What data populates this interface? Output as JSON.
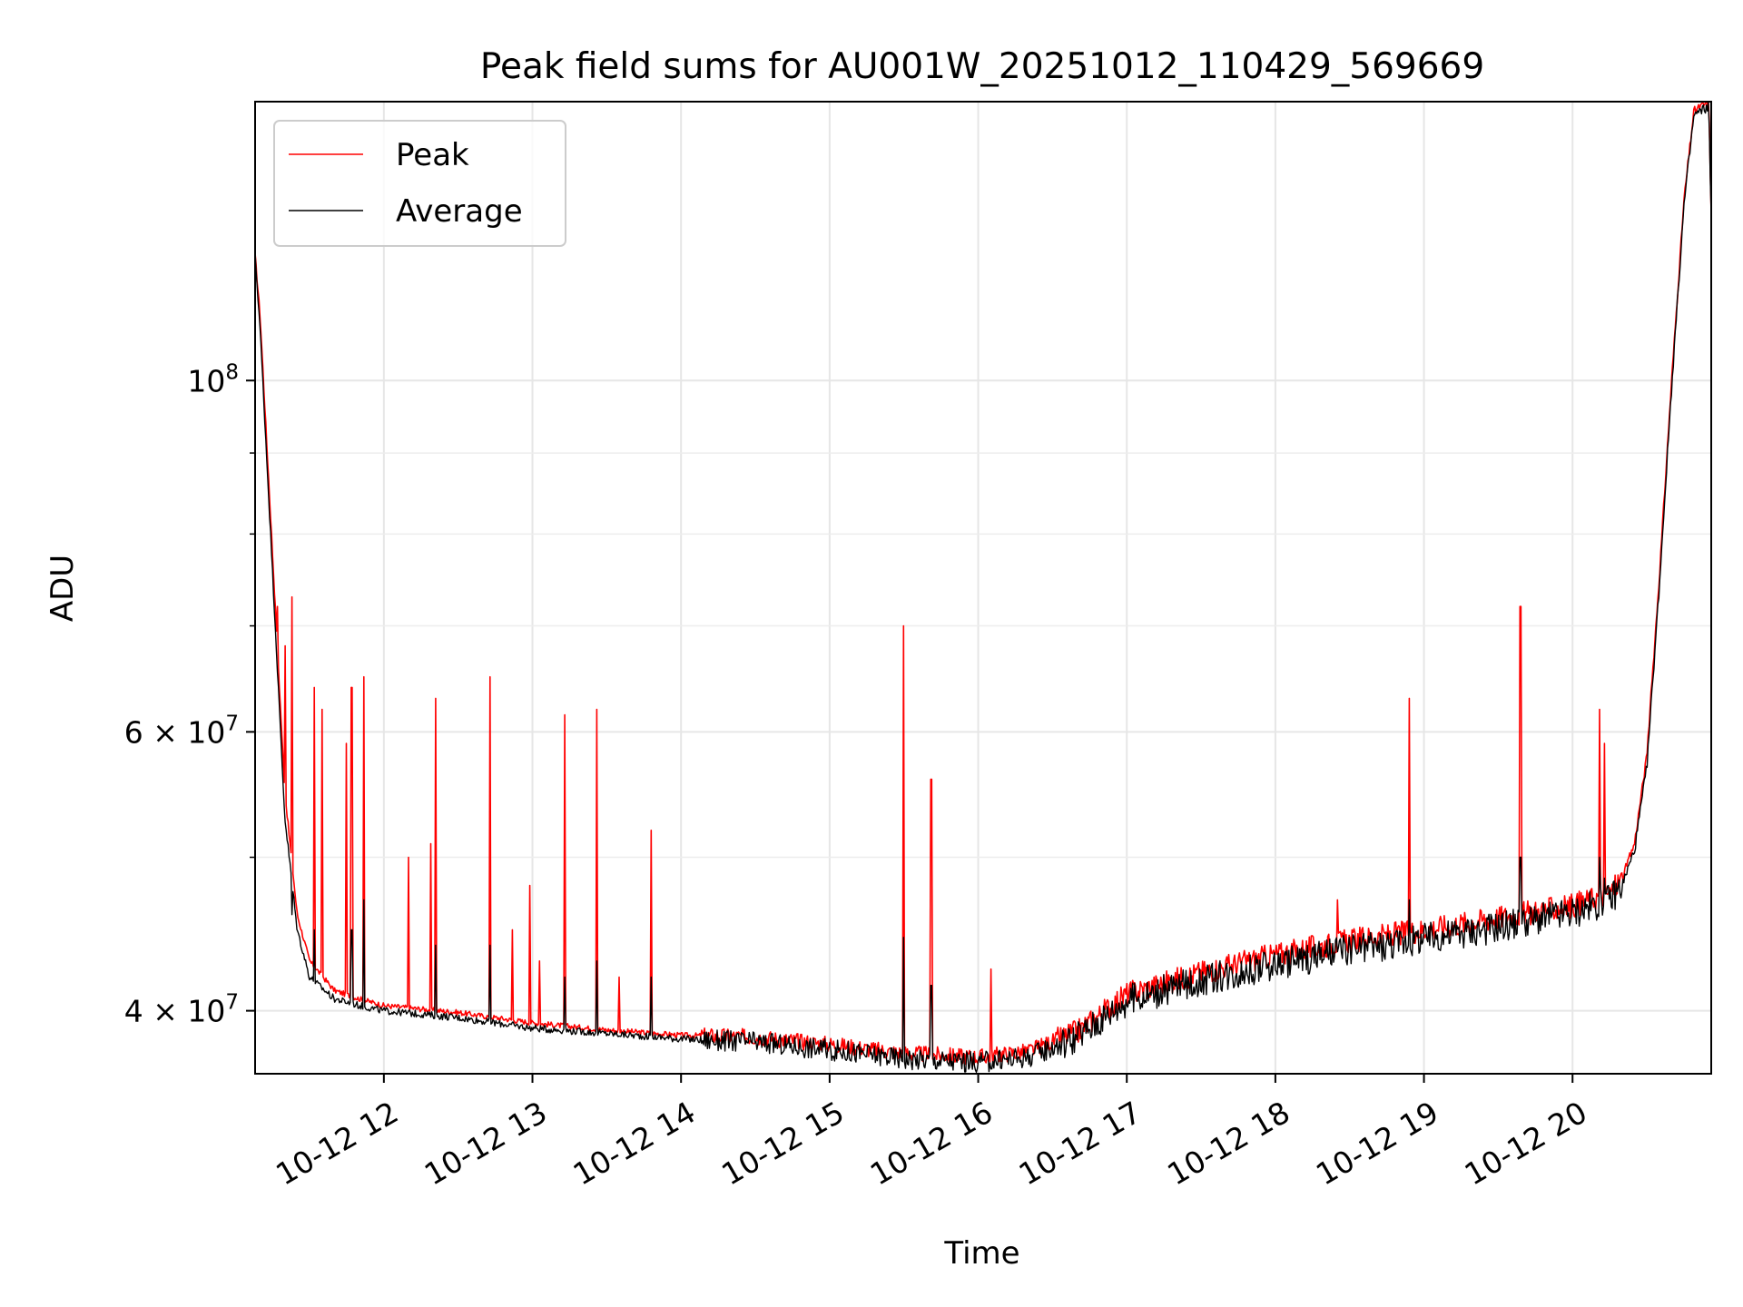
{
  "chart_data": {
    "type": "line",
    "title": "Peak field sums for AU001W_20251012_110429_569669",
    "xlabel": "Time",
    "ylabel": "ADU",
    "y_scale": "log",
    "ylim": [
      36500000,
      150000000
    ],
    "xlim": [
      "2025-10-12T11:08",
      "2025-10-12T20:56"
    ],
    "grid": true,
    "legend_position": "top-left",
    "x_ticks": [
      {
        "value": "2025-10-12T12:00",
        "label": "10-12 12"
      },
      {
        "value": "2025-10-12T13:00",
        "label": "10-12 13"
      },
      {
        "value": "2025-10-12T14:00",
        "label": "10-12 14"
      },
      {
        "value": "2025-10-12T15:00",
        "label": "10-12 15"
      },
      {
        "value": "2025-10-12T16:00",
        "label": "10-12 16"
      },
      {
        "value": "2025-10-12T17:00",
        "label": "10-12 17"
      },
      {
        "value": "2025-10-12T18:00",
        "label": "10-12 18"
      },
      {
        "value": "2025-10-12T19:00",
        "label": "10-12 19"
      },
      {
        "value": "2025-10-12T20:00",
        "label": "10-12 20"
      }
    ],
    "y_major_ticks": [
      {
        "value": 40000000,
        "base": "4",
        "exp": "7"
      },
      {
        "value": 60000000,
        "base": "6",
        "exp": "7"
      },
      {
        "value": 100000000,
        "base": "",
        "exp": "8"
      }
    ],
    "y_minor_ticks": [
      50000000,
      70000000,
      80000000,
      90000000
    ],
    "series": [
      {
        "name": "Peak",
        "color": "#ff0000",
        "baseline": [
          [
            "2025-10-12T11:08",
            120000000
          ],
          [
            "2025-10-12T11:10",
            110000000
          ],
          [
            "2025-10-12T11:15",
            78000000
          ],
          [
            "2025-10-12T11:20",
            55000000
          ],
          [
            "2025-10-12T11:25",
            46000000
          ],
          [
            "2025-10-12T11:30",
            43000000
          ],
          [
            "2025-10-12T11:40",
            41200000
          ],
          [
            "2025-10-12T11:50",
            40700000
          ],
          [
            "2025-10-12T12:00",
            40300000
          ],
          [
            "2025-10-12T12:30",
            39900000
          ],
          [
            "2025-10-12T13:00",
            39300000
          ],
          [
            "2025-10-12T13:30",
            38900000
          ],
          [
            "2025-10-12T14:00",
            38600000
          ],
          [
            "2025-10-12T14:30",
            38500000
          ],
          [
            "2025-10-12T15:00",
            38100000
          ],
          [
            "2025-10-12T15:30",
            37600000
          ],
          [
            "2025-10-12T16:00",
            37400000
          ],
          [
            "2025-10-12T16:20",
            37700000
          ],
          [
            "2025-10-12T16:40",
            38800000
          ],
          [
            "2025-10-12T17:00",
            41000000
          ],
          [
            "2025-10-12T17:30",
            42300000
          ],
          [
            "2025-10-12T18:00",
            43400000
          ],
          [
            "2025-10-12T18:30",
            44300000
          ],
          [
            "2025-10-12T19:00",
            45000000
          ],
          [
            "2025-10-12T19:30",
            45800000
          ],
          [
            "2025-10-12T20:00",
            46600000
          ],
          [
            "2025-10-12T20:15",
            47500000
          ],
          [
            "2025-10-12T20:20",
            48500000
          ],
          [
            "2025-10-12T20:25",
            51000000
          ],
          [
            "2025-10-12T20:30",
            58000000
          ],
          [
            "2025-10-12T20:35",
            75000000
          ],
          [
            "2025-10-12T20:40",
            100000000
          ],
          [
            "2025-10-12T20:45",
            130000000
          ],
          [
            "2025-10-12T20:49",
            148000000
          ],
          [
            "2025-10-12T20:55",
            150000000
          ],
          [
            "2025-10-12T20:56",
            128000000
          ]
        ],
        "spikes": [
          [
            "2025-10-12T11:17",
            72000000
          ],
          [
            "2025-10-12T11:20",
            68000000
          ],
          [
            "2025-10-12T11:23",
            73000000
          ],
          [
            "2025-10-12T11:32",
            64000000
          ],
          [
            "2025-10-12T11:35",
            62000000
          ],
          [
            "2025-10-12T11:45",
            59000000
          ],
          [
            "2025-10-12T11:47",
            64000000
          ],
          [
            "2025-10-12T11:52",
            65000000
          ],
          [
            "2025-10-12T12:10",
            50000000
          ],
          [
            "2025-10-12T12:19",
            51000000
          ],
          [
            "2025-10-12T12:21",
            63000000
          ],
          [
            "2025-10-12T12:43",
            65000000
          ],
          [
            "2025-10-12T12:52",
            45000000
          ],
          [
            "2025-10-12T12:59",
            48000000
          ],
          [
            "2025-10-12T13:03",
            43000000
          ],
          [
            "2025-10-12T13:13",
            61500000
          ],
          [
            "2025-10-12T13:26",
            62000000
          ],
          [
            "2025-10-12T13:35",
            42000000
          ],
          [
            "2025-10-12T13:48",
            52000000
          ],
          [
            "2025-10-12T15:30",
            70000000
          ],
          [
            "2025-10-12T15:41",
            56000000
          ],
          [
            "2025-10-12T16:05",
            42500000
          ],
          [
            "2025-10-12T18:25",
            47000000
          ],
          [
            "2025-10-12T18:54",
            63000000
          ],
          [
            "2025-10-12T19:39",
            72000000
          ],
          [
            "2025-10-12T20:11",
            62000000
          ],
          [
            "2025-10-12T20:13",
            59000000
          ]
        ]
      },
      {
        "name": "Average",
        "color": "#000000",
        "baseline": [
          [
            "2025-10-12T11:08",
            120000000
          ],
          [
            "2025-10-12T11:10",
            108000000
          ],
          [
            "2025-10-12T11:15",
            76000000
          ],
          [
            "2025-10-12T11:20",
            53000000
          ],
          [
            "2025-10-12T11:25",
            45000000
          ],
          [
            "2025-10-12T11:30",
            42000000
          ],
          [
            "2025-10-12T11:40",
            40700000
          ],
          [
            "2025-10-12T11:50",
            40300000
          ],
          [
            "2025-10-12T12:00",
            40000000
          ],
          [
            "2025-10-12T12:30",
            39600000
          ],
          [
            "2025-10-12T13:00",
            39000000
          ],
          [
            "2025-10-12T13:30",
            38700000
          ],
          [
            "2025-10-12T14:00",
            38400000
          ],
          [
            "2025-10-12T14:30",
            38200000
          ],
          [
            "2025-10-12T15:00",
            37800000
          ],
          [
            "2025-10-12T15:30",
            37300000
          ],
          [
            "2025-10-12T16:00",
            37100000
          ],
          [
            "2025-10-12T16:20",
            37400000
          ],
          [
            "2025-10-12T16:40",
            38500000
          ],
          [
            "2025-10-12T17:00",
            40600000
          ],
          [
            "2025-10-12T17:30",
            41800000
          ],
          [
            "2025-10-12T18:00",
            42800000
          ],
          [
            "2025-10-12T18:30",
            43700000
          ],
          [
            "2025-10-12T19:00",
            44400000
          ],
          [
            "2025-10-12T19:30",
            45200000
          ],
          [
            "2025-10-12T20:00",
            46100000
          ],
          [
            "2025-10-12T20:15",
            47000000
          ],
          [
            "2025-10-12T20:20",
            48000000
          ],
          [
            "2025-10-12T20:25",
            50500000
          ],
          [
            "2025-10-12T20:30",
            57000000
          ],
          [
            "2025-10-12T20:35",
            74000000
          ],
          [
            "2025-10-12T20:40",
            99000000
          ],
          [
            "2025-10-12T20:45",
            129000000
          ],
          [
            "2025-10-12T20:49",
            147000000
          ],
          [
            "2025-10-12T20:55",
            149000000
          ],
          [
            "2025-10-12T20:56",
            127000000
          ]
        ],
        "spikes": [
          [
            "2025-10-12T11:23",
            46000000
          ],
          [
            "2025-10-12T11:32",
            45000000
          ],
          [
            "2025-10-12T11:47",
            45000000
          ],
          [
            "2025-10-12T11:52",
            47000000
          ],
          [
            "2025-10-12T12:21",
            44000000
          ],
          [
            "2025-10-12T12:43",
            44000000
          ],
          [
            "2025-10-12T13:13",
            42000000
          ],
          [
            "2025-10-12T13:26",
            43000000
          ],
          [
            "2025-10-12T13:48",
            42000000
          ],
          [
            "2025-10-12T15:30",
            44500000
          ],
          [
            "2025-10-12T15:41",
            41500000
          ],
          [
            "2025-10-12T18:54",
            47000000
          ],
          [
            "2025-10-12T19:39",
            50000000
          ],
          [
            "2025-10-12T20:11",
            50000000
          ],
          [
            "2025-10-12T20:13",
            48500000
          ]
        ]
      }
    ]
  }
}
